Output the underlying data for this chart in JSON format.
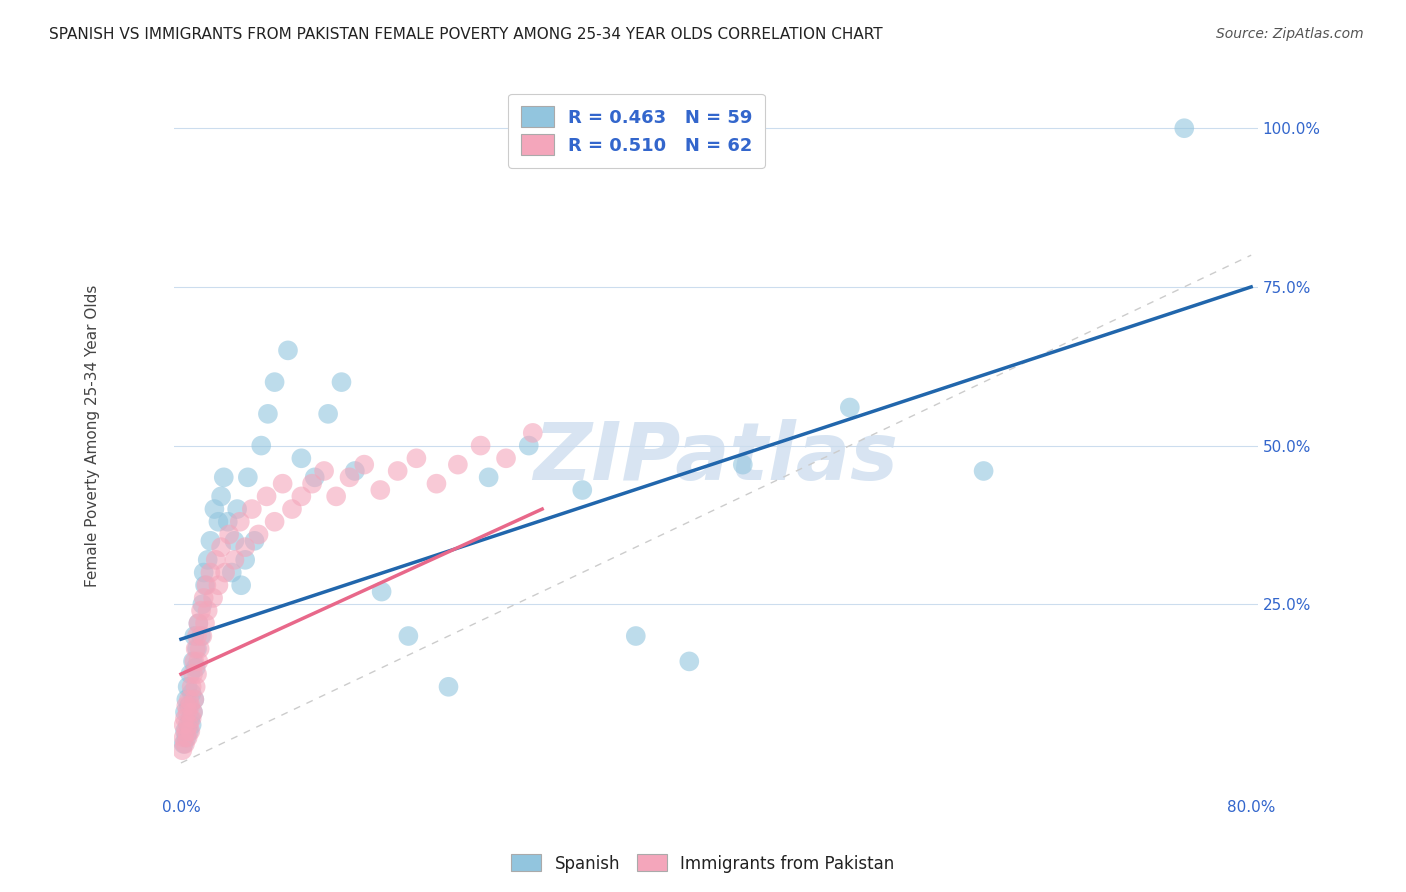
{
  "title": "SPANISH VS IMMIGRANTS FROM PAKISTAN FEMALE POVERTY AMONG 25-34 YEAR OLDS CORRELATION CHART",
  "source": "Source: ZipAtlas.com",
  "ylabel": "Female Poverty Among 25-34 Year Olds",
  "xlim": [
    -0.005,
    0.805
  ],
  "ylim": [
    -0.05,
    1.08
  ],
  "xticks": [
    0.0,
    0.1,
    0.2,
    0.3,
    0.4,
    0.5,
    0.6,
    0.7,
    0.8
  ],
  "xticklabels": [
    "0.0%",
    "",
    "",
    "",
    "",
    "",
    "",
    "",
    "80.0%"
  ],
  "yticks": [
    0.0,
    0.25,
    0.5,
    0.75,
    1.0
  ],
  "yticklabels": [
    "",
    "25.0%",
    "50.0%",
    "75.0%",
    "100.0%"
  ],
  "legend_R_spanish": "R = 0.463",
  "legend_N_spanish": "N = 59",
  "legend_R_pakistan": "R = 0.510",
  "legend_N_pakistan": "N = 62",
  "blue_color": "#92c5de",
  "pink_color": "#f4a6bb",
  "line_blue": "#2166ac",
  "line_pink": "#e8688a",
  "watermark": "ZIPatlas",
  "spanish_x": [
    0.002,
    0.003,
    0.003,
    0.004,
    0.004,
    0.005,
    0.005,
    0.006,
    0.006,
    0.007,
    0.007,
    0.008,
    0.008,
    0.009,
    0.009,
    0.01,
    0.01,
    0.011,
    0.012,
    0.013,
    0.015,
    0.016,
    0.017,
    0.018,
    0.02,
    0.022,
    0.025,
    0.028,
    0.03,
    0.032,
    0.035,
    0.038,
    0.04,
    0.042,
    0.045,
    0.048,
    0.05,
    0.055,
    0.06,
    0.065,
    0.07,
    0.08,
    0.09,
    0.1,
    0.11,
    0.12,
    0.13,
    0.15,
    0.17,
    0.2,
    0.23,
    0.26,
    0.3,
    0.34,
    0.38,
    0.42,
    0.5,
    0.6,
    0.75
  ],
  "spanish_y": [
    0.03,
    0.05,
    0.08,
    0.04,
    0.1,
    0.06,
    0.12,
    0.05,
    0.09,
    0.07,
    0.14,
    0.06,
    0.11,
    0.08,
    0.16,
    0.1,
    0.2,
    0.15,
    0.18,
    0.22,
    0.2,
    0.25,
    0.3,
    0.28,
    0.32,
    0.35,
    0.4,
    0.38,
    0.42,
    0.45,
    0.38,
    0.3,
    0.35,
    0.4,
    0.28,
    0.32,
    0.45,
    0.35,
    0.5,
    0.55,
    0.6,
    0.65,
    0.48,
    0.45,
    0.55,
    0.6,
    0.46,
    0.27,
    0.2,
    0.12,
    0.45,
    0.5,
    0.43,
    0.2,
    0.16,
    0.47,
    0.56,
    0.46,
    1.0
  ],
  "pakistan_x": [
    0.001,
    0.002,
    0.002,
    0.003,
    0.003,
    0.004,
    0.004,
    0.005,
    0.005,
    0.006,
    0.006,
    0.007,
    0.007,
    0.008,
    0.008,
    0.009,
    0.009,
    0.01,
    0.01,
    0.011,
    0.011,
    0.012,
    0.012,
    0.013,
    0.013,
    0.014,
    0.015,
    0.016,
    0.017,
    0.018,
    0.019,
    0.02,
    0.022,
    0.024,
    0.026,
    0.028,
    0.03,
    0.033,
    0.036,
    0.04,
    0.044,
    0.048,
    0.053,
    0.058,
    0.064,
    0.07,
    0.076,
    0.083,
    0.09,
    0.098,
    0.107,
    0.116,
    0.126,
    0.137,
    0.149,
    0.162,
    0.176,
    0.191,
    0.207,
    0.224,
    0.243,
    0.263
  ],
  "pakistan_y": [
    0.02,
    0.04,
    0.06,
    0.03,
    0.07,
    0.05,
    0.09,
    0.04,
    0.08,
    0.06,
    0.1,
    0.05,
    0.09,
    0.07,
    0.12,
    0.08,
    0.14,
    0.1,
    0.16,
    0.12,
    0.18,
    0.14,
    0.2,
    0.16,
    0.22,
    0.18,
    0.24,
    0.2,
    0.26,
    0.22,
    0.28,
    0.24,
    0.3,
    0.26,
    0.32,
    0.28,
    0.34,
    0.3,
    0.36,
    0.32,
    0.38,
    0.34,
    0.4,
    0.36,
    0.42,
    0.38,
    0.44,
    0.4,
    0.42,
    0.44,
    0.46,
    0.42,
    0.45,
    0.47,
    0.43,
    0.46,
    0.48,
    0.44,
    0.47,
    0.5,
    0.48,
    0.52
  ],
  "blue_line_x0": 0.0,
  "blue_line_y0": 0.195,
  "blue_line_x1": 0.8,
  "blue_line_y1": 0.75,
  "pink_line_x0": 0.0,
  "pink_line_y0": 0.14,
  "pink_line_x1": 0.27,
  "pink_line_y1": 0.4
}
